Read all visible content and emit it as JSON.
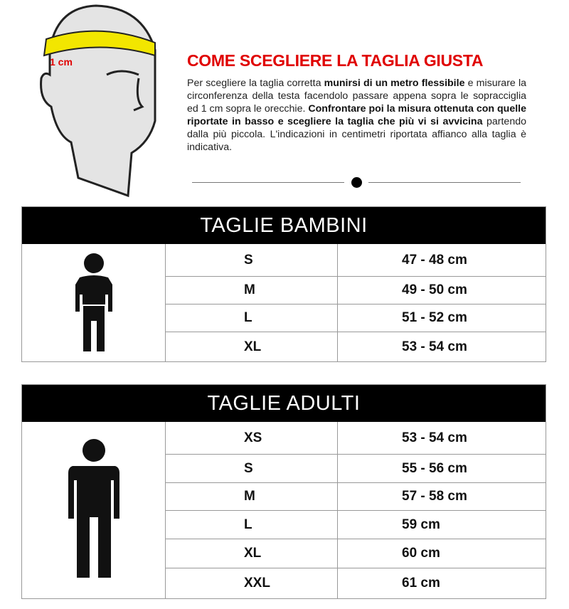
{
  "illustration": {
    "label": "1 cm",
    "tape_color": "#f2e600",
    "label_color": "#e00000"
  },
  "guide": {
    "title": "COME SCEGLIERE LA TAGLIA GIUSTA",
    "p1": "Per scegliere la taglia corretta ",
    "p1_bold": "munirsi di un metro flessibile",
    "p2": " e misurare la circonferenza della testa facendolo passare appena sopra le sopracciglia ed 1 cm sopra le orecchie. ",
    "p3_bold": "Confrontare poi la misura ottenuta con quelle riportate in basso e scegliere la taglia che più vi si avvicina",
    "p4": " partendo dalla più piccola. L'indicazioni in centimetri riportata affianco alla taglia è indicativa."
  },
  "kids": {
    "title": "TAGLIE BAMBINI",
    "rows": [
      {
        "size": "S",
        "cm": "47 - 48 cm"
      },
      {
        "size": "M",
        "cm": "49 - 50 cm"
      },
      {
        "size": "L",
        "cm": "51 - 52 cm"
      },
      {
        "size": "XL",
        "cm": "53 - 54 cm"
      }
    ]
  },
  "adults": {
    "title": "TAGLIE ADULTI",
    "rows": [
      {
        "size": "XS",
        "cm": "53 - 54 cm"
      },
      {
        "size": "S",
        "cm": "55 - 56 cm"
      },
      {
        "size": "M",
        "cm": "57 - 58 cm"
      },
      {
        "size": "L",
        "cm": "59 cm"
      },
      {
        "size": "XL",
        "cm": "60 cm"
      },
      {
        "size": "XXL",
        "cm": "61 cm"
      }
    ]
  }
}
